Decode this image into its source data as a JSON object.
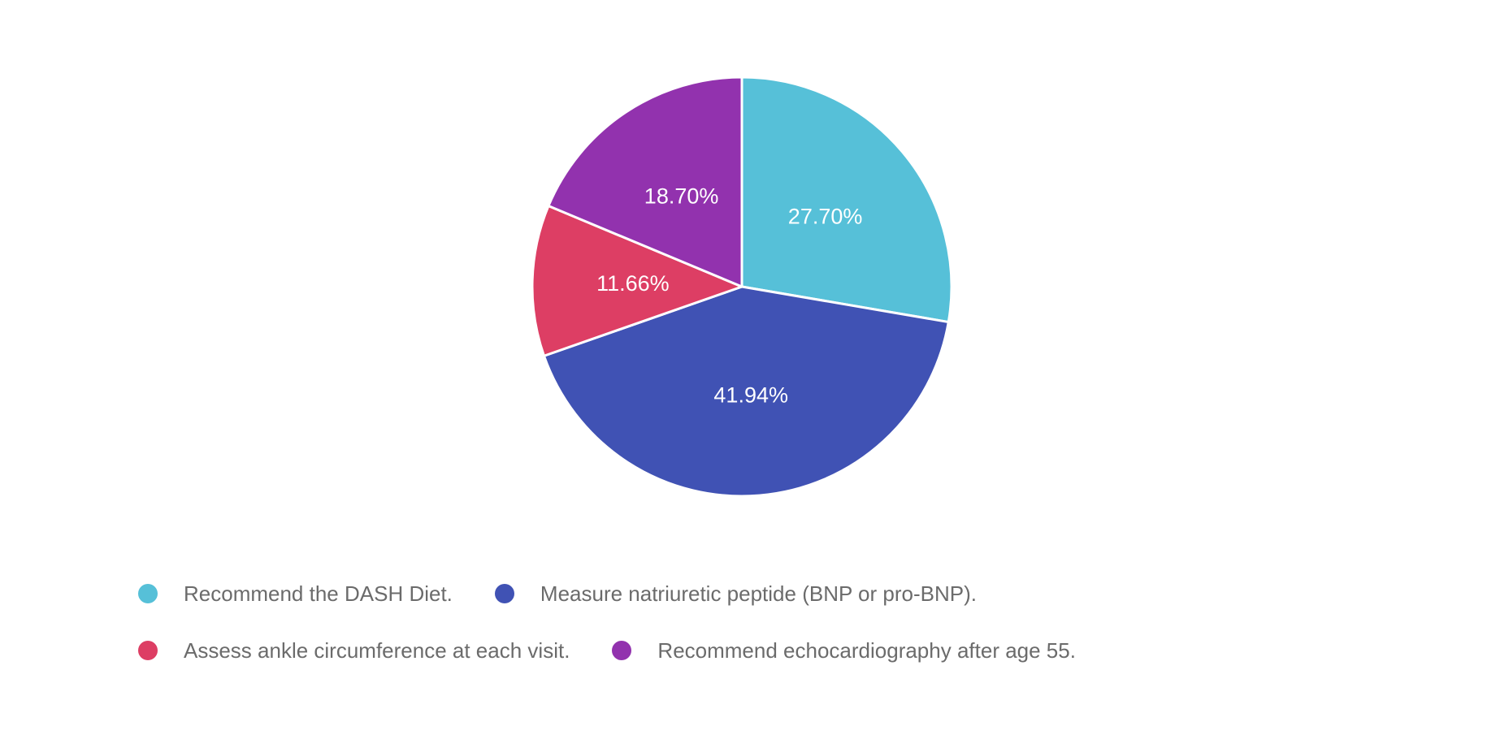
{
  "chart_data": {
    "type": "pie",
    "title": "",
    "segments": [
      {
        "label": "Recommend the DASH Diet.",
        "value": 27.7,
        "display": "27.70%",
        "color": "#56C0D8"
      },
      {
        "label": "Measure natriuretic peptide (BNP or pro-BNP).",
        "value": 41.94,
        "display": "41.94%",
        "color": "#4052B4"
      },
      {
        "label": "Assess ankle circumference at each visit.",
        "value": 11.66,
        "display": "11.66%",
        "color": "#DD3E64"
      },
      {
        "label": "Recommend echocardiography after age 55.",
        "value": 18.7,
        "display": "18.70%",
        "color": "#9232AE"
      }
    ],
    "total": 100.0,
    "start_angle_deg": -90,
    "direction": "clockwise",
    "label_position": "inside",
    "label_color": "#FFFFFF",
    "slice_border_color": "#FFFFFF",
    "legend_position": "bottom-left",
    "legend_text_color": "#6B6B6B",
    "background_color": "#FFFFFF"
  }
}
